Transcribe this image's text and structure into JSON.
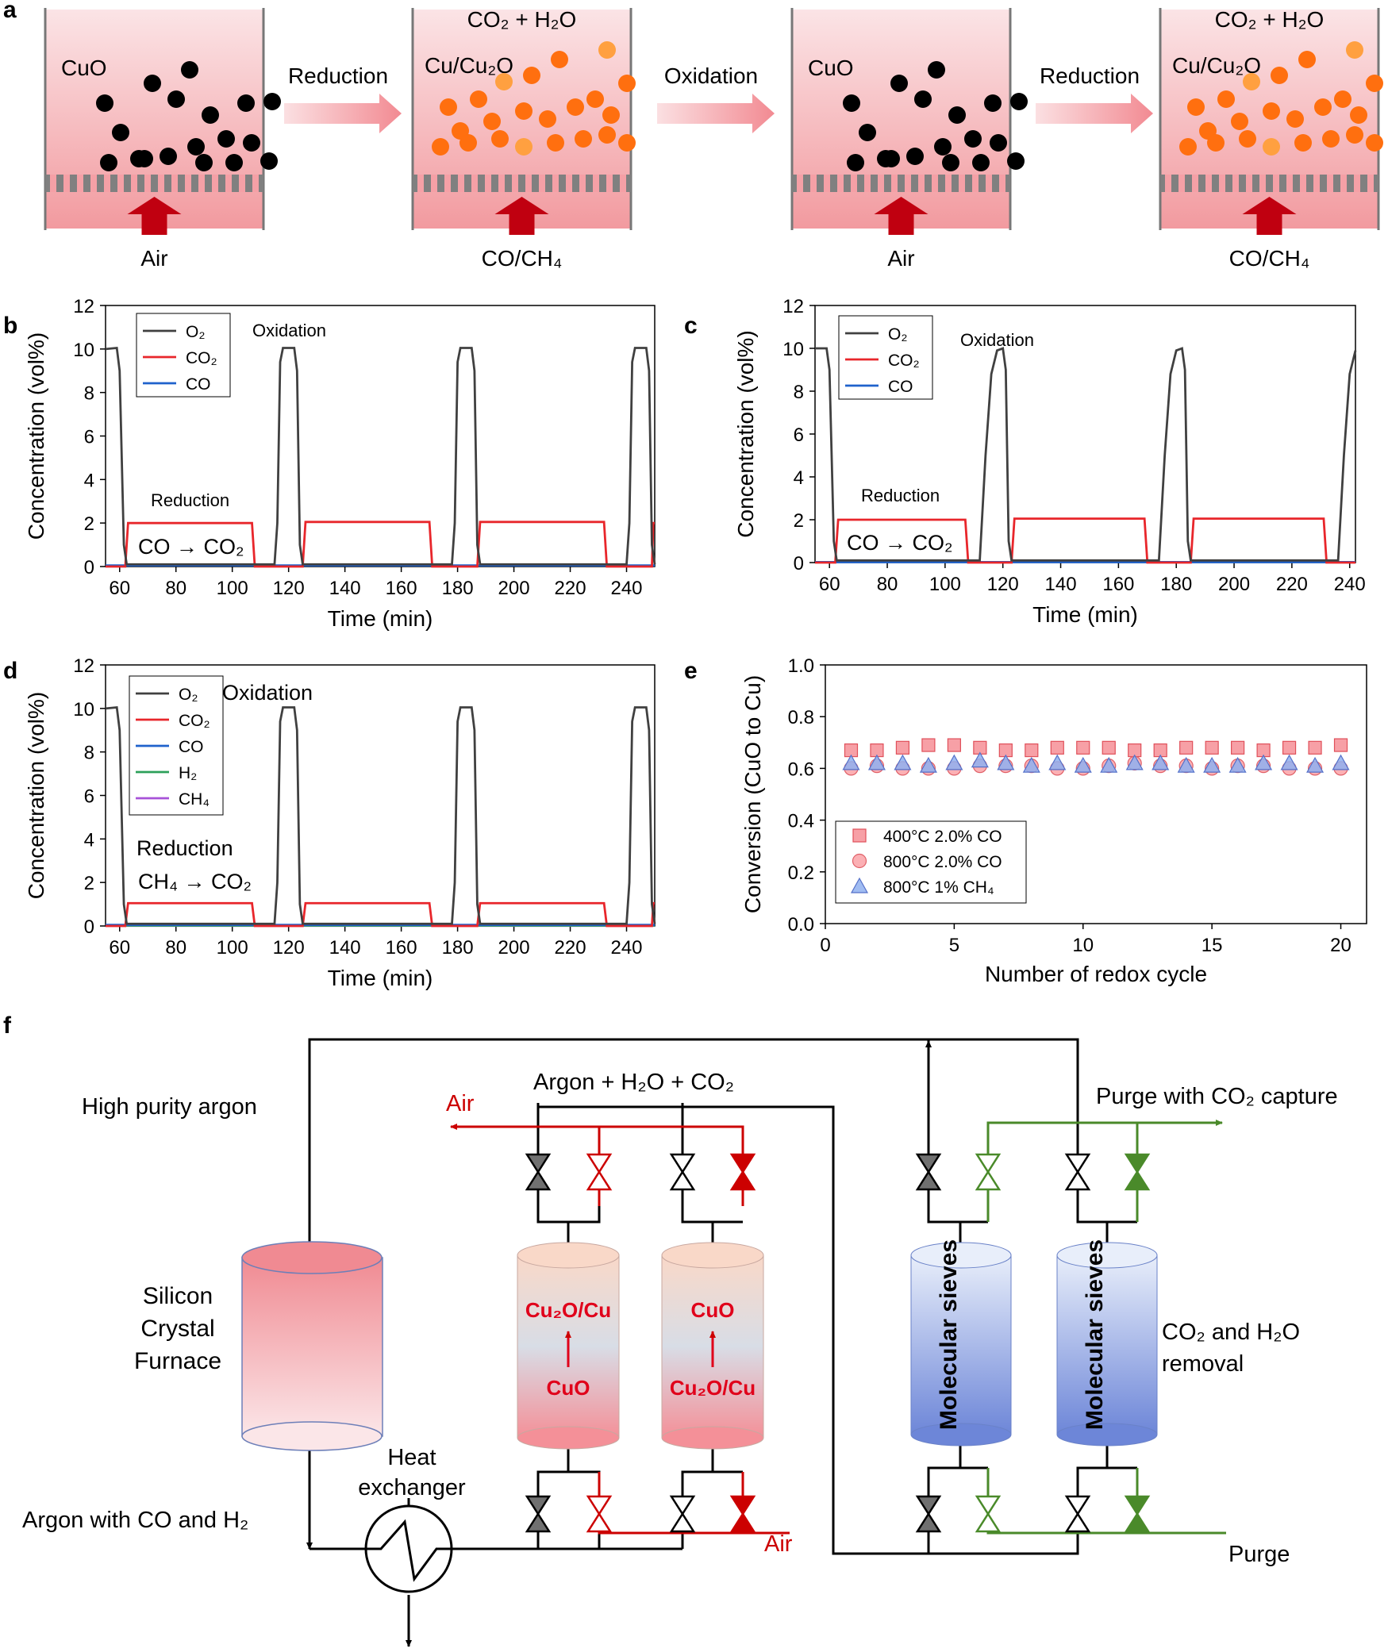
{
  "panels": {
    "a": "a",
    "b": "b",
    "c": "c",
    "d": "d",
    "e": "e",
    "f": "f"
  },
  "colors": {
    "o2": "#404040",
    "co2": "#e8262b",
    "co": "#1f62cc",
    "h2": "#2ca05a",
    "ch4": "#a752d8",
    "cuo": "#000000",
    "cu": "#ff6f0f",
    "cu2o": "#ffa040",
    "air_valve": "#cc0000",
    "purge_valve": "#4a8a2a",
    "heat": "#c0001a"
  },
  "panel_a": {
    "stages": [
      {
        "material": "CuO",
        "particle": "CuO",
        "gas_out": "",
        "gas_in": "Air"
      },
      {
        "material": "Cu/Cu₂O",
        "particle": "Cu",
        "gas_out": "CO₂ + H₂O",
        "gas_in": "CO/CH₄"
      },
      {
        "material": "CuO",
        "particle": "CuO",
        "gas_out": "",
        "gas_in": "Air"
      },
      {
        "material": "Cu/Cu₂O",
        "particle": "Cu",
        "gas_out": "CO₂ + H₂O",
        "gas_in": "CO/CH₄"
      }
    ],
    "arrows": [
      "Reduction",
      "Oxidation",
      "Reduction"
    ]
  },
  "chart_data": [
    {
      "panel": "b",
      "type": "line",
      "xlabel": "Time (min)",
      "ylabel": "Concentration (vol%)",
      "xlim": [
        55,
        250
      ],
      "ylim": [
        0,
        12
      ],
      "xticks": [
        60,
        80,
        100,
        120,
        140,
        160,
        180,
        200,
        220,
        240
      ],
      "yticks": [
        0,
        2,
        4,
        6,
        8,
        10,
        12
      ],
      "legend": [
        "O₂",
        "CO₂",
        "CO"
      ],
      "annotations": [
        "Oxidation",
        "Reduction",
        "CO → CO₂"
      ],
      "series": [
        {
          "name": "O₂",
          "x": [
            55,
            59,
            60,
            61.5,
            62.5,
            115,
            116,
            117,
            118,
            122,
            123,
            124,
            125,
            178,
            179,
            180,
            181,
            185,
            186,
            187,
            188,
            240,
            241,
            242,
            243,
            247,
            248,
            249,
            250
          ],
          "y": [
            10,
            10.05,
            9,
            1,
            0.1,
            0.1,
            2,
            9.4,
            10.05,
            10.05,
            9,
            1,
            0.1,
            0.1,
            2,
            9.4,
            10.05,
            10.05,
            9,
            1,
            0.1,
            0.1,
            2,
            9.4,
            10.05,
            10.05,
            9,
            1,
            0.1
          ]
        },
        {
          "name": "CO₂",
          "x": [
            55,
            62,
            63,
            107,
            108,
            125,
            126,
            170,
            171,
            187,
            188,
            232,
            233,
            249,
            249.5,
            250
          ],
          "y": [
            0,
            0,
            2,
            2,
            0,
            0,
            2.05,
            2.05,
            0,
            0,
            2.05,
            2.05,
            0,
            0,
            2,
            2
          ]
        },
        {
          "name": "CO",
          "x": [
            55,
            250
          ],
          "y": [
            0.05,
            0.05
          ]
        }
      ]
    },
    {
      "panel": "c",
      "type": "line",
      "xlabel": "Time (min)",
      "ylabel": "Concentration (vol%)",
      "xlim": [
        55,
        242
      ],
      "ylim": [
        0,
        12
      ],
      "xticks": [
        60,
        80,
        100,
        120,
        140,
        160,
        180,
        200,
        220,
        240
      ],
      "yticks": [
        0,
        2,
        4,
        6,
        8,
        10,
        12
      ],
      "legend": [
        "O₂",
        "CO₂",
        "CO"
      ],
      "annotations": [
        "Oxidation",
        "Reduction",
        "CO → CO₂"
      ],
      "series": [
        {
          "name": "O₂",
          "x": [
            55,
            59,
            60,
            61.5,
            62.5,
            112,
            114,
            116,
            118,
            120,
            121,
            122,
            123,
            174,
            176,
            178,
            180,
            182,
            183,
            184,
            185,
            236,
            238,
            240,
            242
          ],
          "y": [
            10,
            10,
            9,
            1,
            0.1,
            0.1,
            5,
            8.8,
            9.9,
            10,
            9,
            1,
            0.1,
            0.1,
            5,
            8.8,
            9.9,
            10,
            9,
            1,
            0.1,
            0.1,
            5,
            8.8,
            9.9
          ]
        },
        {
          "name": "CO₂",
          "x": [
            55,
            62,
            63,
            107,
            108,
            123,
            124,
            169,
            170,
            185,
            186,
            231,
            232,
            242
          ],
          "y": [
            0,
            0,
            2,
            2,
            0,
            0,
            2.05,
            2.05,
            0,
            0,
            2.05,
            2.05,
            0,
            0
          ]
        },
        {
          "name": "CO",
          "x": [
            55,
            242
          ],
          "y": [
            0.02,
            0.02
          ]
        }
      ]
    },
    {
      "panel": "d",
      "type": "line",
      "xlabel": "Time (min)",
      "ylabel": "Concentration (vol%)",
      "xlim": [
        55,
        250
      ],
      "ylim": [
        0,
        12
      ],
      "xticks": [
        60,
        80,
        100,
        120,
        140,
        160,
        180,
        200,
        220,
        240
      ],
      "yticks": [
        0,
        2,
        4,
        6,
        8,
        10,
        12
      ],
      "legend": [
        "O₂",
        "CO₂",
        "CO",
        "H₂",
        "CH₄"
      ],
      "annotations": [
        "Oxidation",
        "Reduction",
        "CH₄ → CO₂"
      ],
      "series": [
        {
          "name": "O₂",
          "x": [
            55,
            59,
            60,
            61.5,
            62.5,
            115,
            116,
            117,
            118,
            122,
            123,
            124,
            125,
            178,
            179,
            180,
            181,
            185,
            186,
            187,
            188,
            240,
            241,
            242,
            243,
            247,
            248,
            249,
            250
          ],
          "y": [
            10,
            10.05,
            9,
            1,
            0.1,
            0.1,
            2,
            9.4,
            10.05,
            10.05,
            9,
            1,
            0.1,
            0.1,
            2,
            9.4,
            10.05,
            10.05,
            9,
            1,
            0.1,
            0.1,
            2,
            9.4,
            10.05,
            10.05,
            9,
            1,
            0.1
          ]
        },
        {
          "name": "CO₂",
          "x": [
            55,
            62,
            63,
            107,
            108,
            125,
            126,
            170,
            171,
            187,
            188,
            232,
            233,
            249,
            249.5,
            250
          ],
          "y": [
            0,
            0,
            1.05,
            1.05,
            0,
            0,
            1.05,
            1.05,
            0,
            0,
            1.05,
            1.05,
            0,
            0,
            1.05,
            1.05
          ]
        },
        {
          "name": "CO",
          "x": [
            55,
            250
          ],
          "y": [
            0.05,
            0.05
          ]
        },
        {
          "name": "H₂",
          "x": [
            55,
            250
          ],
          "y": [
            0.02,
            0.02
          ]
        },
        {
          "name": "CH₄",
          "x": [
            55,
            250
          ],
          "y": [
            0.01,
            0.01
          ]
        }
      ]
    },
    {
      "panel": "e",
      "type": "scatter",
      "xlabel": "Number of redox cycle",
      "ylabel": "Conversion (CuO to Cu)",
      "xlim": [
        0,
        21
      ],
      "ylim": [
        0,
        1
      ],
      "xticks": [
        0,
        5,
        10,
        15,
        20
      ],
      "yticks": [
        0.0,
        0.2,
        0.4,
        0.6,
        0.8,
        1.0
      ],
      "legend": [
        "400°C 2.0% CO",
        "800°C 2.0% CO",
        "800°C 1% CH₄"
      ],
      "series": [
        {
          "name": "400°C 2.0% CO",
          "marker": "square",
          "x": [
            1,
            2,
            3,
            4,
            5,
            6,
            7,
            8,
            9,
            10,
            11,
            12,
            13,
            14,
            15,
            16,
            17,
            18,
            19,
            20
          ],
          "y": [
            0.67,
            0.67,
            0.68,
            0.69,
            0.69,
            0.68,
            0.67,
            0.67,
            0.68,
            0.68,
            0.68,
            0.67,
            0.67,
            0.68,
            0.68,
            0.68,
            0.67,
            0.68,
            0.68,
            0.69
          ]
        },
        {
          "name": "800°C 2.0% CO",
          "marker": "circle",
          "x": [
            1,
            2,
            3,
            4,
            5,
            6,
            7,
            8,
            9,
            10,
            11,
            12,
            13,
            14,
            15,
            16,
            17,
            18,
            19,
            20
          ],
          "y": [
            0.6,
            0.61,
            0.6,
            0.6,
            0.6,
            0.61,
            0.61,
            0.61,
            0.6,
            0.6,
            0.61,
            0.62,
            0.61,
            0.61,
            0.6,
            0.61,
            0.61,
            0.6,
            0.6,
            0.6
          ]
        },
        {
          "name": "800°C 1% CH₄",
          "marker": "triangle",
          "x": [
            1,
            2,
            3,
            4,
            5,
            6,
            7,
            8,
            9,
            10,
            11,
            12,
            13,
            14,
            15,
            16,
            17,
            18,
            19,
            20
          ],
          "y": [
            0.62,
            0.62,
            0.62,
            0.61,
            0.62,
            0.63,
            0.62,
            0.61,
            0.62,
            0.61,
            0.61,
            0.62,
            0.62,
            0.61,
            0.61,
            0.61,
            0.62,
            0.62,
            0.61,
            0.62
          ]
        }
      ]
    }
  ],
  "panel_f": {
    "high_purity_argon": "High purity argon",
    "furnace": [
      "Silicon",
      "Crystal",
      "Furnace"
    ],
    "argon_with": "Argon with CO and H₂",
    "heat_exchanger": [
      "Heat",
      "exchanger"
    ],
    "air_top": "Air",
    "air_bottom": "Air",
    "argon_h2o_co2": "Argon + H₂O + CO₂",
    "reactor1_top": "Cu₂O/Cu",
    "reactor1_bottom": "CuO",
    "reactor2_top": "CuO",
    "reactor2_bottom": "Cu₂O/Cu",
    "purge_capture": "Purge with CO₂ capture",
    "sieves": "Molecular sieves",
    "removal": [
      "CO₂ and H₂O",
      "removal"
    ],
    "purge": "Purge"
  }
}
